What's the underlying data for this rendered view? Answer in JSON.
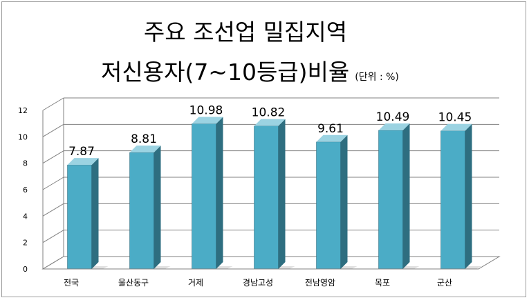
{
  "title": {
    "line1": "주요 조선업 밀집지역",
    "line2": "저신용자(7~10등급)비율",
    "unit": "(단위 : %)"
  },
  "colors": {
    "bar_front": "#4bacc6",
    "bar_side": "#2e6e80",
    "bar_top": "#9bd3e2",
    "grid": "#808080"
  },
  "chart_data": {
    "type": "bar",
    "categories": [
      "전국",
      "울산동구",
      "거제",
      "경남고성",
      "전남영암",
      "목포",
      "군산"
    ],
    "values": [
      7.87,
      8.81,
      10.98,
      10.82,
      9.61,
      10.49,
      10.45
    ],
    "value_labels": [
      "7.87",
      "8.81",
      "10.98",
      "10.82",
      "9.61",
      "10.49",
      "10.45"
    ],
    "y_ticks": [
      "0",
      "2",
      "4",
      "6",
      "8",
      "10",
      "12"
    ],
    "ylim": [
      0,
      12
    ],
    "grid": true,
    "legend": "none",
    "style": "3d-column"
  }
}
